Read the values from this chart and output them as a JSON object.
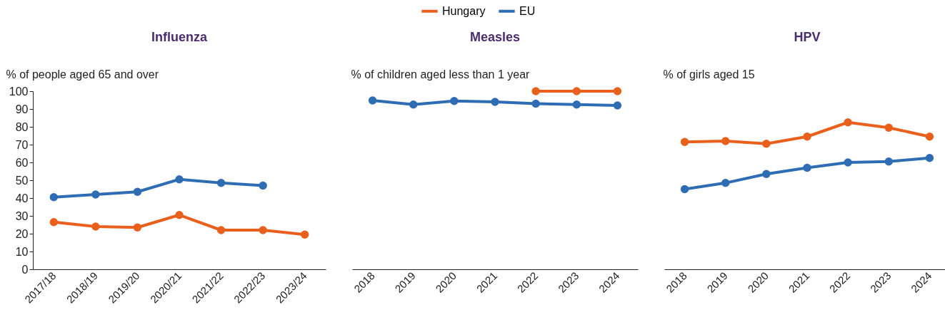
{
  "chart_data": [
    {
      "type": "line",
      "title": "Influenza",
      "ylabel": "% of people aged 65 and over",
      "categories": [
        "2017/18",
        "2018/19",
        "2019/20",
        "2020/21",
        "2021/22",
        "2022/23",
        "2023/24"
      ],
      "ylim": [
        0,
        100
      ],
      "yticks": [
        0,
        10,
        20,
        30,
        40,
        50,
        60,
        70,
        80,
        90,
        100
      ],
      "grid": false,
      "legend": "top",
      "marker": "circle",
      "series": [
        {
          "name": "Hungary",
          "color": "#e8601c",
          "values": [
            26.5,
            24,
            23.5,
            30.5,
            22,
            22,
            19.5
          ]
        },
        {
          "name": "EU",
          "color": "#2e6db4",
          "values": [
            40.5,
            42,
            43.5,
            50.5,
            48.5,
            47,
            null
          ]
        }
      ]
    },
    {
      "type": "line",
      "title": "Measles",
      "ylabel": "% of children aged less than 1 year",
      "categories": [
        "2018",
        "2019",
        "2020",
        "2021",
        "2022",
        "2023",
        "2024"
      ],
      "ylim": [
        0,
        100
      ],
      "tick_labels": "x",
      "grid": false,
      "legend": "top",
      "marker": "circle",
      "series": [
        {
          "name": "Hungary",
          "color": "#e8601c",
          "values": [
            null,
            null,
            null,
            null,
            100,
            100,
            100
          ]
        },
        {
          "name": "EU",
          "color": "#2e6db4",
          "values": [
            94.8,
            92.5,
            94.5,
            94,
            93,
            92.5,
            92
          ]
        }
      ]
    },
    {
      "type": "line",
      "title": "HPV",
      "ylabel": "% of girls aged 15",
      "categories": [
        "2018",
        "2019",
        "2020",
        "2021",
        "2022",
        "2023",
        "2024"
      ],
      "ylim": [
        0,
        100
      ],
      "tick_labels": "x",
      "grid": false,
      "legend": "top",
      "marker": "circle",
      "series": [
        {
          "name": "Hungary",
          "color": "#e8601c",
          "values": [
            71.5,
            72,
            70.5,
            74.5,
            82.5,
            79.5,
            74.5
          ]
        },
        {
          "name": "EU",
          "color": "#2e6db4",
          "values": [
            45,
            48.5,
            53.5,
            57,
            60,
            60.5,
            62.5
          ]
        }
      ]
    }
  ]
}
